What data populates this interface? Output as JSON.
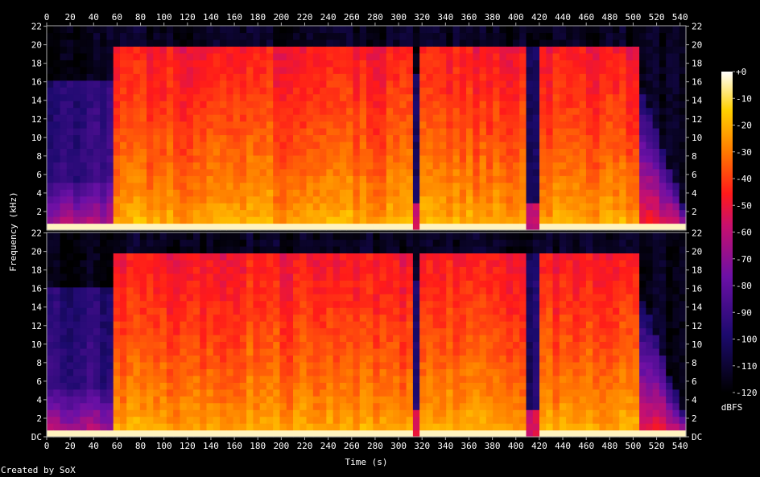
{
  "chart_data": {
    "type": "heatmap",
    "title": "",
    "xlabel": "Time (s)",
    "ylabel": "Frequency (kHz)",
    "xlim": [
      0,
      545
    ],
    "ylim": [
      0,
      22.05
    ],
    "x_ticks": [
      0,
      20,
      40,
      60,
      80,
      100,
      120,
      140,
      160,
      180,
      200,
      220,
      240,
      260,
      280,
      300,
      320,
      340,
      360,
      380,
      400,
      420,
      440,
      460,
      480,
      500,
      520,
      540
    ],
    "y_ticks": [
      {
        "value": 0,
        "label": "DC"
      },
      {
        "value": 2,
        "label": "2"
      },
      {
        "value": 4,
        "label": "4"
      },
      {
        "value": 6,
        "label": "6"
      },
      {
        "value": 8,
        "label": "8"
      },
      {
        "value": 10,
        "label": "10"
      },
      {
        "value": 12,
        "label": "12"
      },
      {
        "value": 14,
        "label": "14"
      },
      {
        "value": 16,
        "label": "16"
      },
      {
        "value": 18,
        "label": "18"
      },
      {
        "value": 20,
        "label": "20"
      },
      {
        "value": 22,
        "label": "22"
      }
    ],
    "channels": 2,
    "colorbar": {
      "label": "dBFS",
      "range": [
        -120,
        0
      ],
      "ticks": [
        "+0",
        "-10",
        "-20",
        "-30",
        "-40",
        "-50",
        "-60",
        "-70",
        "-80",
        "-90",
        "-100",
        "-110",
        "-120"
      ]
    },
    "segments": [
      {
        "start": 0,
        "end": 57,
        "level": "low",
        "cutoff_khz": 16
      },
      {
        "start": 57,
        "end": 310,
        "level": "loud",
        "cutoff_khz": 20
      },
      {
        "start": 310,
        "end": 316,
        "level": "gap",
        "cutoff_khz": 17
      },
      {
        "start": 316,
        "end": 410,
        "level": "loud",
        "cutoff_khz": 20
      },
      {
        "start": 410,
        "end": 418,
        "level": "gap",
        "cutoff_khz": 20
      },
      {
        "start": 418,
        "end": 505,
        "level": "loud",
        "cutoff_khz": 20
      },
      {
        "start": 505,
        "end": 545,
        "level": "fade",
        "cutoff_khz": 16
      }
    ]
  },
  "credit": "Created by SoX"
}
